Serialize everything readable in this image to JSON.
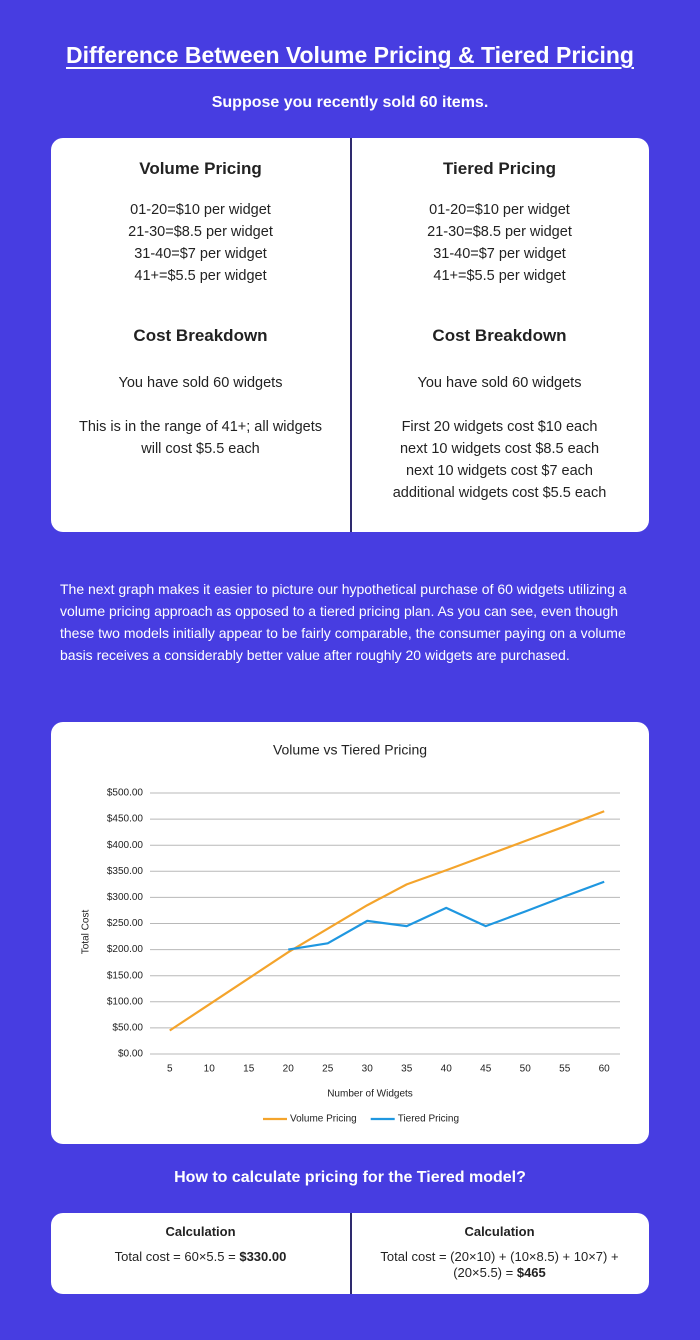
{
  "title": "Difference Between Volume Pricing & Tiered Pricing",
  "subtitle": "Suppose you recently sold 60 items.",
  "comparison": [
    {
      "heading": "Volume Pricing",
      "tiers": [
        "01-20=$10 per widget",
        "21-30=$8.5 per widget",
        "31-40=$7 per widget",
        "41+=$5.5 per widget"
      ],
      "breakdown_heading": "Cost Breakdown",
      "sold": "You have sold 60 widgets",
      "details": [
        "This is in the range of 41+; all widgets will cost $5.5 each"
      ]
    },
    {
      "heading": "Tiered Pricing",
      "tiers": [
        "01-20=$10 per widget",
        "21-30=$8.5 per widget",
        "31-40=$7 per widget",
        "41+=$5.5 per widget"
      ],
      "breakdown_heading": "Cost Breakdown",
      "sold": "You have sold 60 widgets",
      "details": [
        "First 20 widgets cost $10 each",
        "next 10 widgets cost $8.5 each",
        "next 10 widgets cost $7 each",
        "additional widgets cost $5.5 each"
      ]
    }
  ],
  "paragraph": "The next graph makes it easier to picture our hypothetical purchase of 60 widgets utilizing a volume pricing approach as opposed to a tiered pricing plan. As you can see, even though these two models initially appear to be fairly comparable, the consumer paying on a volume basis receives a considerably better value after roughly 20 widgets are purchased.",
  "chart_data": {
    "type": "line",
    "title": "Volume vs Tiered Pricing",
    "x_label": "Number of Widgets",
    "y_label": "Total Cost",
    "x": [
      5,
      10,
      15,
      20,
      25,
      30,
      35,
      40,
      45,
      50,
      55,
      60
    ],
    "series": [
      {
        "name": "Volume Pricing",
        "color": "#f4a42c",
        "values": [
          45,
          95,
          145,
          195,
          240,
          285,
          325,
          352,
          380,
          408,
          436,
          465
        ]
      },
      {
        "name": "Tiered Pricing",
        "color": "#1f97e0",
        "values": [
          null,
          null,
          null,
          200,
          212,
          255,
          245,
          280,
          245,
          273,
          302,
          330
        ]
      }
    ],
    "xlim": [
      2.5,
      62
    ],
    "xticks": [
      5,
      10,
      15,
      20,
      25,
      30,
      35,
      40,
      45,
      50,
      55,
      60
    ],
    "ylim": [
      0,
      500
    ],
    "yticks": [
      {
        "value": 0,
        "label": "$0.00"
      },
      {
        "value": 50,
        "label": "$50.00"
      },
      {
        "value": 100,
        "label": "$100.00"
      },
      {
        "value": 150,
        "label": "$150.00"
      },
      {
        "value": 200,
        "label": "$200.00"
      },
      {
        "value": 250,
        "label": "$250.00"
      },
      {
        "value": 300,
        "label": "$300.00"
      },
      {
        "value": 350,
        "label": "$350.00"
      },
      {
        "value": 400,
        "label": "$400.00"
      },
      {
        "value": 450,
        "label": "$450.00"
      },
      {
        "value": 500,
        "label": "$500.00"
      }
    ],
    "grid": true,
    "legend": "bottom"
  },
  "calc_heading": "How to calculate pricing for the Tiered model?",
  "calculations": [
    {
      "heading": "Calculation",
      "formula": "Total cost = 60×5.5 =",
      "result": "$330.00"
    },
    {
      "heading": "Calculation",
      "formula": "Total cost = (20×10) + (10×8.5) + 10×7) + (20×5.5) =",
      "result": "$465"
    }
  ]
}
